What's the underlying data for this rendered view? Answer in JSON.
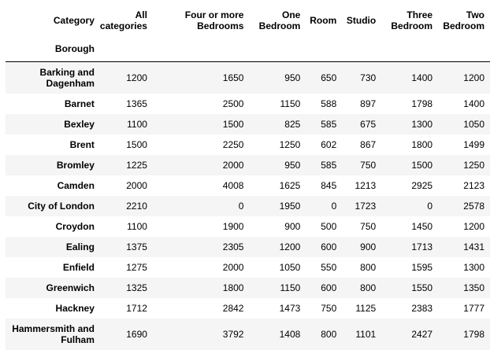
{
  "table": {
    "index_header": "Category",
    "index_name": "Borough",
    "columns": [
      [
        "All",
        "categories"
      ],
      [
        "Four or more",
        "Bedrooms"
      ],
      [
        "One",
        "Bedroom"
      ],
      [
        "Room"
      ],
      [
        "Studio"
      ],
      [
        "Three",
        "Bedroom"
      ],
      [
        "Two",
        "Bedroom"
      ]
    ],
    "rows": [
      {
        "borough": [
          "Barking and",
          "Dagenham"
        ],
        "values": [
          "1200",
          "1650",
          "950",
          "650",
          "730",
          "1400",
          "1200"
        ]
      },
      {
        "borough": [
          "Barnet"
        ],
        "values": [
          "1365",
          "2500",
          "1150",
          "588",
          "897",
          "1798",
          "1400"
        ]
      },
      {
        "borough": [
          "Bexley"
        ],
        "values": [
          "1100",
          "1500",
          "825",
          "585",
          "675",
          "1300",
          "1050"
        ]
      },
      {
        "borough": [
          "Brent"
        ],
        "values": [
          "1500",
          "2250",
          "1250",
          "602",
          "867",
          "1800",
          "1499"
        ]
      },
      {
        "borough": [
          "Bromley"
        ],
        "values": [
          "1225",
          "2000",
          "950",
          "585",
          "750",
          "1500",
          "1250"
        ]
      },
      {
        "borough": [
          "Camden"
        ],
        "values": [
          "2000",
          "4008",
          "1625",
          "845",
          "1213",
          "2925",
          "2123"
        ]
      },
      {
        "borough": [
          "City of London"
        ],
        "values": [
          "2210",
          "0",
          "1950",
          "0",
          "1723",
          "0",
          "2578"
        ]
      },
      {
        "borough": [
          "Croydon"
        ],
        "values": [
          "1100",
          "1900",
          "900",
          "500",
          "750",
          "1450",
          "1200"
        ]
      },
      {
        "borough": [
          "Ealing"
        ],
        "values": [
          "1375",
          "2305",
          "1200",
          "600",
          "900",
          "1713",
          "1431"
        ]
      },
      {
        "borough": [
          "Enfield"
        ],
        "values": [
          "1275",
          "2000",
          "1050",
          "550",
          "800",
          "1595",
          "1300"
        ]
      },
      {
        "borough": [
          "Greenwich"
        ],
        "values": [
          "1325",
          "1800",
          "1150",
          "600",
          "800",
          "1550",
          "1350"
        ]
      },
      {
        "borough": [
          "Hackney"
        ],
        "values": [
          "1712",
          "2842",
          "1473",
          "750",
          "1125",
          "2383",
          "1777"
        ]
      },
      {
        "borough": [
          "Hammersmith and",
          "Fulham"
        ],
        "values": [
          "1690",
          "3792",
          "1408",
          "800",
          "1101",
          "2427",
          "1798"
        ]
      }
    ]
  }
}
